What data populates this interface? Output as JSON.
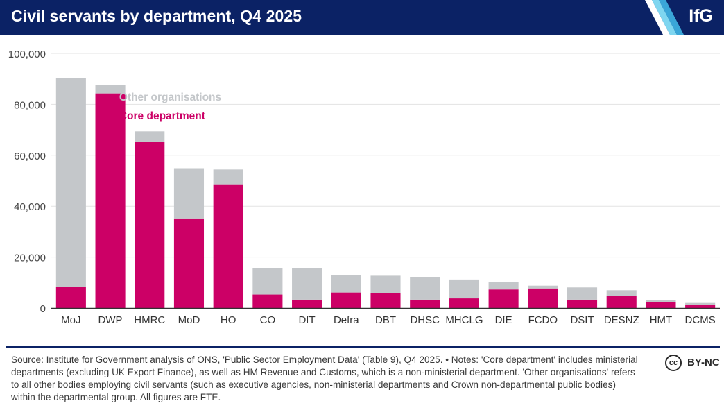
{
  "header": {
    "title": "Civil servants by department, Q4 2025",
    "logo_text": "IfG",
    "background": "#0b2265"
  },
  "chart_data": {
    "type": "bar",
    "stacked": true,
    "categories": [
      "MoJ",
      "DWP",
      "HMRC",
      "MoD",
      "HO",
      "CO",
      "DfT",
      "Defra",
      "DBT",
      "DHSC",
      "MHCLG",
      "DfE",
      "FCDO",
      "DSIT",
      "DESNZ",
      "HMT",
      "DCMS"
    ],
    "series": [
      {
        "name": "Core department",
        "color": "#cc0066",
        "values": [
          8200,
          84300,
          65400,
          35200,
          48600,
          5300,
          3300,
          6100,
          5900,
          3300,
          3800,
          7300,
          7700,
          3300,
          4800,
          2200,
          1100
        ]
      },
      {
        "name": "Other organisations",
        "color": "#c4c7ca",
        "values": [
          82000,
          3200,
          4000,
          19700,
          5800,
          10300,
          12400,
          6900,
          6800,
          8700,
          7400,
          2900,
          1100,
          4800,
          2200,
          900,
          900
        ]
      }
    ],
    "title": "",
    "xlabel": "",
    "ylabel": "",
    "ylim": [
      0,
      100000
    ],
    "yticks": [
      0,
      20000,
      40000,
      60000,
      80000,
      100000
    ],
    "ytick_labels": [
      "0",
      "20,000",
      "40,000",
      "60,000",
      "80,000",
      "100,000"
    ],
    "grid": true,
    "legend": {
      "placement": "inline, upper left beside the DWP bar",
      "order": [
        "Other organisations",
        "Core department"
      ]
    }
  },
  "footer": {
    "source_note": "Source: Institute for Government analysis of ONS, 'Public Sector Employment Data' (Table 9), Q4 2025. • Notes: 'Core department' includes ministerial departments (excluding UK Export Finance), as well as HM Revenue and Customs, which is a non-ministerial department. 'Other organisations' refers to all other bodies employing civil servants (such as executive agencies, non-ministerial departments and Crown non-departmental public bodies) within the departmental group. All figures are FTE.",
    "license_icon": "cc",
    "license_label": "BY-NC"
  }
}
